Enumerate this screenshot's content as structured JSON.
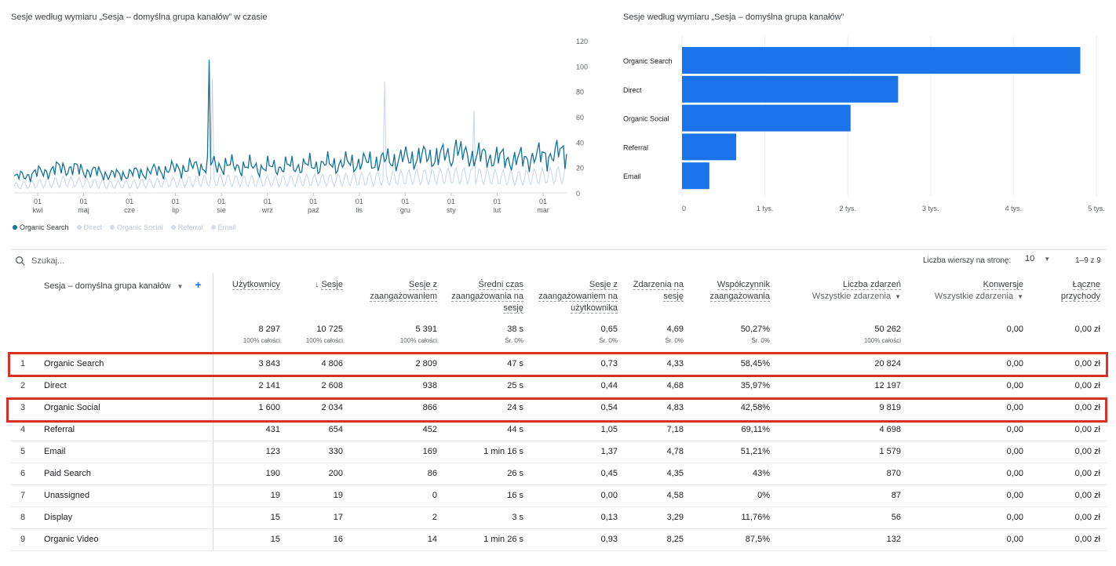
{
  "line_chart": {
    "title": "Sesje według wymiaru „Sesja – domyślna grupa kanałów” w czasie",
    "y_ticks": [
      "120",
      "100",
      "80",
      "60",
      "40",
      "20",
      "0"
    ],
    "x_ticks": [
      {
        "day": "01",
        "month": "kwi"
      },
      {
        "day": "01",
        "month": "maj"
      },
      {
        "day": "01",
        "month": "cze"
      },
      {
        "day": "01",
        "month": "lip"
      },
      {
        "day": "01",
        "month": "sie"
      },
      {
        "day": "01",
        "month": "wrz"
      },
      {
        "day": "01",
        "month": "paź"
      },
      {
        "day": "01",
        "month": "lis"
      },
      {
        "day": "01",
        "month": "gru"
      },
      {
        "day": "01",
        "month": "sty"
      },
      {
        "day": "01",
        "month": "lut"
      },
      {
        "day": "01",
        "month": "mar"
      }
    ],
    "legend": [
      {
        "name": "Organic Search",
        "color": "#12739a",
        "active": true
      },
      {
        "name": "Direct",
        "color": "#c7d4ec",
        "active": false
      },
      {
        "name": "Organic Social",
        "color": "#c7d4ec",
        "active": false
      },
      {
        "name": "Referral",
        "color": "#c7d4ec",
        "active": false
      },
      {
        "name": "Email",
        "color": "#c7d4ec",
        "active": false
      }
    ]
  },
  "chart_data": [
    {
      "type": "line",
      "ylim": [
        0,
        120
      ],
      "x": [
        "kwi",
        "maj",
        "cze",
        "lip",
        "sie",
        "wrz",
        "paź",
        "lis",
        "gru",
        "sty",
        "lut",
        "mar"
      ],
      "series": [
        {
          "name": "Organic Search",
          "values": [
            12,
            20,
            14,
            18,
            22,
            20,
            22,
            24,
            28,
            30,
            26,
            32
          ]
        }
      ]
    },
    {
      "type": "bar",
      "title": "Sesje według wymiaru „Sesja – domyślna grupa kanałów”",
      "categories": [
        "Organic Search",
        "Direct",
        "Organic Social",
        "Referral",
        "Email"
      ],
      "values": [
        4806,
        2608,
        2034,
        654,
        330
      ],
      "xlim": [
        0,
        5000
      ],
      "x_ticks": [
        "0",
        "1 tys.",
        "2 tys.",
        "3 tys.",
        "4 tys.",
        "5 tys."
      ],
      "color": "#1a73e8"
    }
  ],
  "search": {
    "placeholder": "Szukaj..."
  },
  "pagination": {
    "rows_label": "Liczba wierszy na stronę:",
    "rows_value": "10",
    "range": "1–9 z 9"
  },
  "table": {
    "dimension_header": "Sesja – domyślna grupa kanałów",
    "columns": [
      {
        "label": "Użytkownicy",
        "sub": ""
      },
      {
        "label": "Sesje",
        "sub": ""
      },
      {
        "label": "Sesje z zaangażowaniem",
        "sub": ""
      },
      {
        "label": "Średni czas zaangażowania na sesję",
        "sub": ""
      },
      {
        "label": "Sesje z zaangażowaniem na użytkownika",
        "sub": ""
      },
      {
        "label": "Zdarzenia na sesję",
        "sub": ""
      },
      {
        "label": "Współczynnik zaangażowania",
        "sub": ""
      },
      {
        "label": "Liczba zdarzeń",
        "sub": "Wszystkie zdarzenia"
      },
      {
        "label": "Konwersje",
        "sub": "Wszystkie zdarzenia"
      },
      {
        "label": "Łączne przychody",
        "sub": ""
      }
    ],
    "totals": [
      {
        "value": "8 297",
        "sub": "100% całości"
      },
      {
        "value": "10 725",
        "sub": "100% całości"
      },
      {
        "value": "5 391",
        "sub": "100% całości"
      },
      {
        "value": "38 s",
        "sub": "Śr. 0%"
      },
      {
        "value": "0,65",
        "sub": "Śr. 0%"
      },
      {
        "value": "4,69",
        "sub": "Śr. 0%"
      },
      {
        "value": "50,27%",
        "sub": "Śr. 0%"
      },
      {
        "value": "50 262",
        "sub": "100% całości"
      },
      {
        "value": "0,00",
        "sub": ""
      },
      {
        "value": "0,00 zł",
        "sub": ""
      }
    ],
    "rows": [
      {
        "idx": "1",
        "name": "Organic Search",
        "v": [
          "3 843",
          "4 806",
          "2 809",
          "47 s",
          "0,73",
          "4,33",
          "58,45%",
          "20 824",
          "0,00",
          "0,00 zł"
        ]
      },
      {
        "idx": "2",
        "name": "Direct",
        "v": [
          "2 141",
          "2 608",
          "938",
          "25 s",
          "0,44",
          "4,68",
          "35,97%",
          "12 197",
          "0,00",
          "0,00 zł"
        ]
      },
      {
        "idx": "3",
        "name": "Organic Social",
        "v": [
          "1 600",
          "2 034",
          "866",
          "24 s",
          "0,54",
          "4,83",
          "42,58%",
          "9 819",
          "0,00",
          "0,00 zł"
        ]
      },
      {
        "idx": "4",
        "name": "Referral",
        "v": [
          "431",
          "654",
          "452",
          "44 s",
          "1,05",
          "7,18",
          "69,11%",
          "4 698",
          "0,00",
          "0,00 zł"
        ]
      },
      {
        "idx": "5",
        "name": "Email",
        "v": [
          "123",
          "330",
          "169",
          "1 min 16 s",
          "1,37",
          "4,78",
          "51,21%",
          "1 579",
          "0,00",
          "0,00 zł"
        ]
      },
      {
        "idx": "6",
        "name": "Paid Search",
        "v": [
          "190",
          "200",
          "86",
          "26 s",
          "0,45",
          "4,35",
          "43%",
          "870",
          "0,00",
          "0,00 zł"
        ]
      },
      {
        "idx": "7",
        "name": "Unassigned",
        "v": [
          "19",
          "19",
          "0",
          "16 s",
          "0,00",
          "4,58",
          "0%",
          "87",
          "0,00",
          "0,00 zł"
        ]
      },
      {
        "idx": "8",
        "name": "Display",
        "v": [
          "15",
          "17",
          "2",
          "3 s",
          "0,13",
          "3,29",
          "11,76%",
          "56",
          "0,00",
          "0,00 zł"
        ]
      },
      {
        "idx": "9",
        "name": "Organic Video",
        "v": [
          "15",
          "16",
          "14",
          "1 min 26 s",
          "0,93",
          "8,25",
          "87,5%",
          "132",
          "0,00",
          "0,00 zł"
        ]
      }
    ]
  }
}
